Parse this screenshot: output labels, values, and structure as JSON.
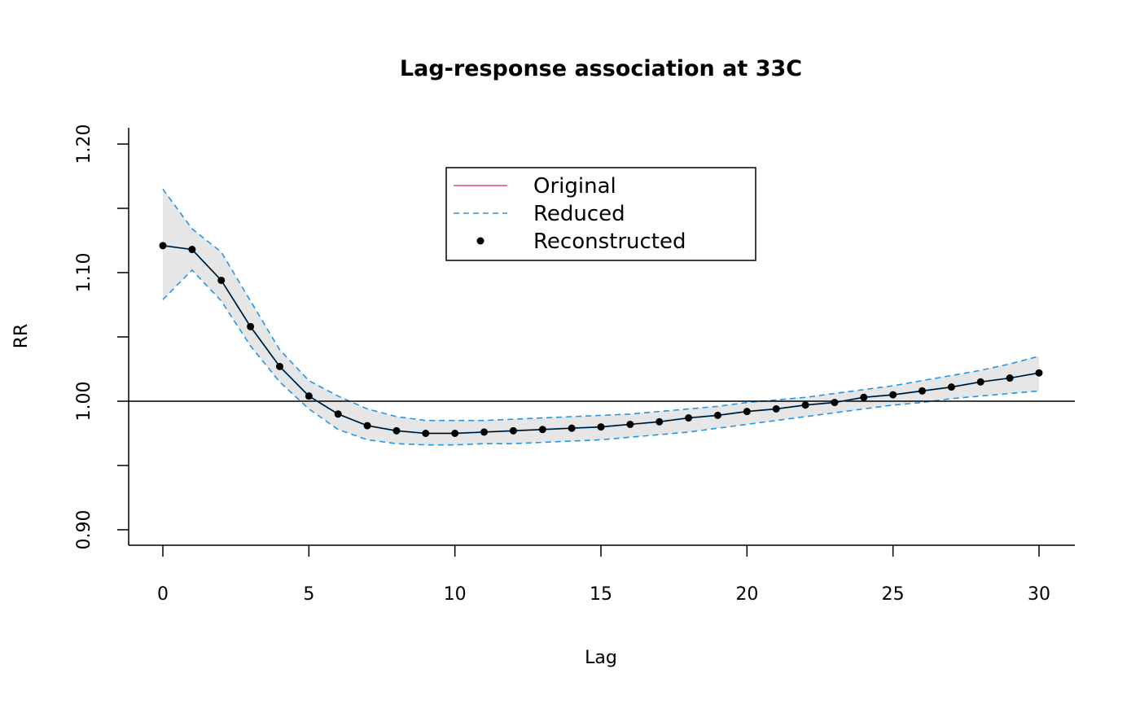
{
  "chart_data": {
    "type": "line",
    "title": "Lag-response association at 33C",
    "xlabel": "Lag",
    "ylabel": "RR",
    "xlim": [
      -1.2,
      31.2
    ],
    "ylim": [
      0.888,
      1.212
    ],
    "xticks": [
      0,
      5,
      10,
      15,
      20,
      25,
      30
    ],
    "xtick_labels": [
      "0",
      "5",
      "10",
      "15",
      "20",
      "25",
      "30"
    ],
    "yticks": [
      0.9,
      0.95,
      1.0,
      1.05,
      1.1,
      1.15,
      1.2
    ],
    "ytick_labels": [
      "0.90",
      "",
      "1.00",
      "",
      "1.10",
      "",
      "1.20"
    ],
    "reference_line": 1.0,
    "grid": false,
    "legend_placement": "top-center",
    "colors": {
      "original": "#DF536B",
      "reduced": "#2297E6",
      "reconstructed": "#000000",
      "ci_fill": "#E6E6E6"
    },
    "x": [
      0,
      1,
      2,
      3,
      4,
      5,
      6,
      7,
      8,
      9,
      10,
      11,
      12,
      13,
      14,
      15,
      16,
      17,
      18,
      19,
      20,
      21,
      22,
      23,
      24,
      25,
      26,
      27,
      28,
      29,
      30
    ],
    "series": [
      {
        "name": "Original",
        "style": "solid",
        "values": [
          1.121,
          1.118,
          1.094,
          1.058,
          1.027,
          1.004,
          0.99,
          0.981,
          0.977,
          0.975,
          0.975,
          0.976,
          0.977,
          0.978,
          0.979,
          0.98,
          0.982,
          0.984,
          0.987,
          0.989,
          0.992,
          0.994,
          0.997,
          0.999,
          1.003,
          1.005,
          1.008,
          1.011,
          1.015,
          1.018,
          1.022
        ]
      },
      {
        "name": "Reduced",
        "style": "dashed",
        "values": [
          1.121,
          1.118,
          1.094,
          1.058,
          1.027,
          1.004,
          0.99,
          0.981,
          0.977,
          0.975,
          0.975,
          0.976,
          0.977,
          0.978,
          0.979,
          0.98,
          0.982,
          0.984,
          0.987,
          0.989,
          0.992,
          0.994,
          0.997,
          0.999,
          1.003,
          1.005,
          1.008,
          1.011,
          1.015,
          1.018,
          1.022
        ],
        "ci_upper": [
          1.165,
          1.134,
          1.116,
          1.078,
          1.04,
          1.016,
          1.004,
          0.994,
          0.988,
          0.985,
          0.985,
          0.985,
          0.986,
          0.987,
          0.988,
          0.989,
          0.99,
          0.992,
          0.994,
          0.996,
          0.999,
          1.001,
          1.003,
          1.006,
          1.009,
          1.012,
          1.016,
          1.02,
          1.024,
          1.029,
          1.035
        ],
        "ci_lower": [
          1.079,
          1.102,
          1.078,
          1.043,
          1.015,
          0.994,
          0.978,
          0.97,
          0.967,
          0.966,
          0.966,
          0.967,
          0.967,
          0.968,
          0.969,
          0.97,
          0.972,
          0.974,
          0.976,
          0.979,
          0.982,
          0.985,
          0.988,
          0.991,
          0.994,
          0.997,
          0.999,
          1.002,
          1.004,
          1.006,
          1.008
        ]
      },
      {
        "name": "Reconstructed",
        "style": "points",
        "values": [
          1.121,
          1.118,
          1.094,
          1.058,
          1.027,
          1.004,
          0.99,
          0.981,
          0.977,
          0.975,
          0.975,
          0.976,
          0.977,
          0.978,
          0.979,
          0.98,
          0.982,
          0.984,
          0.987,
          0.989,
          0.992,
          0.994,
          0.997,
          0.999,
          1.003,
          1.005,
          1.008,
          1.011,
          1.015,
          1.018,
          1.022
        ]
      }
    ]
  }
}
